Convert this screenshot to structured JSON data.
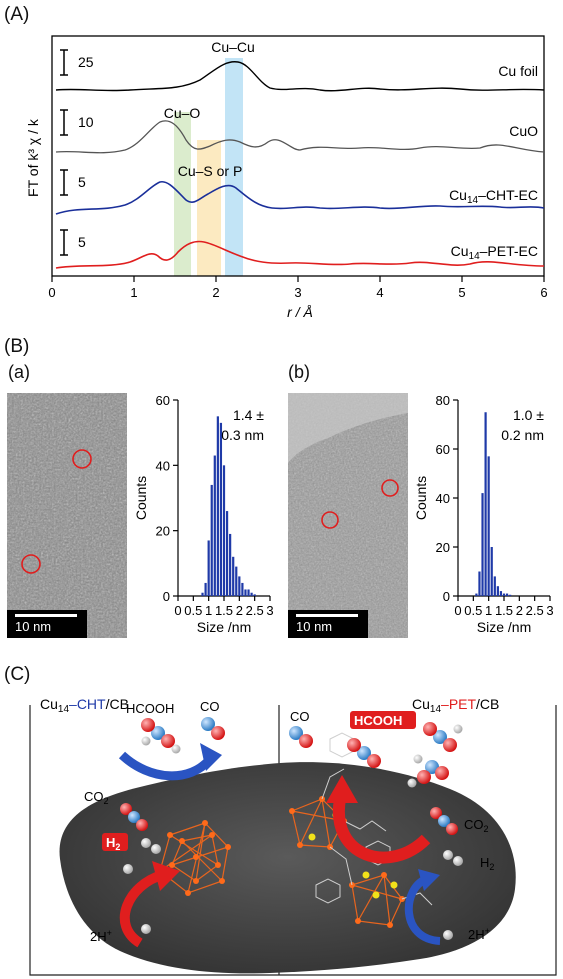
{
  "panels": {
    "A": "(A)",
    "B": "(B)",
    "Ba": "(a)",
    "Bb": "(b)",
    "C": "(C)"
  },
  "exafs": {
    "ylabel": "FT of k³ χ / k",
    "xlabel": "r / Å",
    "xticks": [
      "0",
      "1",
      "2",
      "3",
      "4",
      "5",
      "6"
    ],
    "peak_labels": {
      "cucu": "Cu–Cu",
      "cuo": "Cu–O",
      "cusp": "Cu–S or P"
    },
    "scales": [
      "25",
      "10",
      "5",
      "5"
    ],
    "samples": [
      "Cu foil",
      "CuO",
      "Cu",
      "Cu"
    ],
    "sample_subscripts": [
      "14",
      "14"
    ],
    "sample_suffixes": [
      "–CHT-EC",
      "–PET-EC"
    ],
    "colors": {
      "cufoil": "#000000",
      "cuo": "#555555",
      "cht": "#1a2f9a",
      "pet": "#e01e1e",
      "band_green": "#d5e9c4",
      "band_yellow": "#fbe6b6",
      "band_blue": "#b7dff5"
    }
  },
  "tem": {
    "scalebar_a": "10 nm",
    "scalebar_b": "10 nm"
  },
  "chart_data": [
    {
      "type": "bar",
      "x": [
        0.8,
        0.9,
        1.0,
        1.1,
        1.2,
        1.3,
        1.4,
        1.5,
        1.6,
        1.7,
        1.8,
        1.9,
        2.0,
        2.1,
        2.2,
        2.3,
        2.4,
        2.5
      ],
      "values": [
        1,
        4,
        17,
        34,
        43,
        55,
        53,
        40,
        26,
        19,
        12,
        9,
        6,
        4,
        2,
        2,
        1,
        0.5
      ],
      "xlabel": "Size /nm",
      "ylabel": "Counts",
      "xlim": [
        0,
        3
      ],
      "ylim": [
        0,
        60
      ],
      "xticks": [
        0,
        0.5,
        1,
        1.5,
        2,
        2.5,
        3
      ],
      "yticks": [
        0,
        20,
        40,
        60
      ],
      "annotation_line1": "1.4 ±",
      "annotation_line2": "0.3 nm"
    },
    {
      "type": "bar",
      "x": [
        0.6,
        0.7,
        0.8,
        0.9,
        1.0,
        1.1,
        1.2,
        1.3,
        1.4,
        1.5,
        1.6,
        1.7
      ],
      "values": [
        1,
        10,
        42,
        75,
        57,
        20,
        8,
        4,
        2,
        1,
        1,
        0.5
      ],
      "xlabel": "Size /nm",
      "ylabel": "Counts",
      "xlim": [
        0,
        3
      ],
      "ylim": [
        0,
        80
      ],
      "xticks": [
        0,
        0.5,
        1,
        1.5,
        2,
        2.5,
        3
      ],
      "yticks": [
        0,
        20,
        40,
        60,
        80
      ],
      "annotation_line1": "1.0 ±",
      "annotation_line2": "0.2 nm"
    }
  ],
  "scheme": {
    "left_title_pre": "Cu",
    "left_title_sub": "14",
    "left_title_mid": "–CHT",
    "left_title_post": "/CB",
    "right_title_pre": "Cu",
    "right_title_sub": "14",
    "right_title_mid": "–PET",
    "right_title_post": "/CB",
    "hcooh_left": "HCOOH",
    "co_left": "CO",
    "co2_left": "CO",
    "h2_left": "H",
    "h_plus_left": "2H",
    "co_right": "CO",
    "hcooh_right": "HCOOH",
    "co2_right": "CO",
    "h2_right": "H",
    "h_plus_right": "2H",
    "sub2": "2",
    "plus": "+",
    "colors": {
      "cht": "#1f3aa8",
      "pet": "#e01e1e"
    }
  }
}
